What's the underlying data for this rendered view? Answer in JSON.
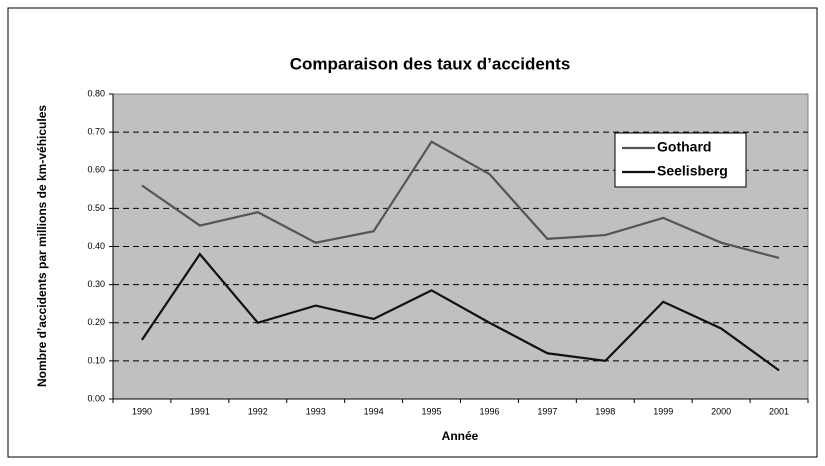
{
  "chart_data": {
    "type": "line",
    "title": "Comparaison des taux d’accidents",
    "x_label": "Année",
    "y_label": "Nombre d’accidents par millions de km-véhicules",
    "categories": [
      "1990",
      "1991",
      "1992",
      "1993",
      "1994",
      "1995",
      "1996",
      "1997",
      "1998",
      "1999",
      "2000",
      "2001"
    ],
    "series": [
      {
        "name": "Gothard",
        "color": "#555555",
        "values": [
          0.56,
          0.455,
          0.49,
          0.41,
          0.44,
          0.675,
          0.59,
          0.42,
          0.43,
          0.475,
          0.41,
          0.37
        ]
      },
      {
        "name": "Seelisberg",
        "color": "#111111",
        "values": [
          0.155,
          0.38,
          0.2,
          0.245,
          0.21,
          0.285,
          0.2,
          0.12,
          0.1,
          0.255,
          0.185,
          0.075
        ]
      }
    ],
    "ylim": [
      0,
      0.8
    ],
    "yticks": [
      {
        "value": 0,
        "label": "0.00"
      },
      {
        "value": 0.1,
        "label": "0.10"
      },
      {
        "value": 0.2,
        "label": "0.20"
      },
      {
        "value": 0.3,
        "label": "0.30"
      },
      {
        "value": 0.4,
        "label": "0.40"
      },
      {
        "value": 0.5,
        "label": "0.50"
      },
      {
        "value": 0.6,
        "label": "0.60"
      },
      {
        "value": 0.7,
        "label": "0.70"
      },
      {
        "value": 0.8,
        "label": "0.80"
      }
    ],
    "grid": true,
    "legend": "upper right"
  }
}
